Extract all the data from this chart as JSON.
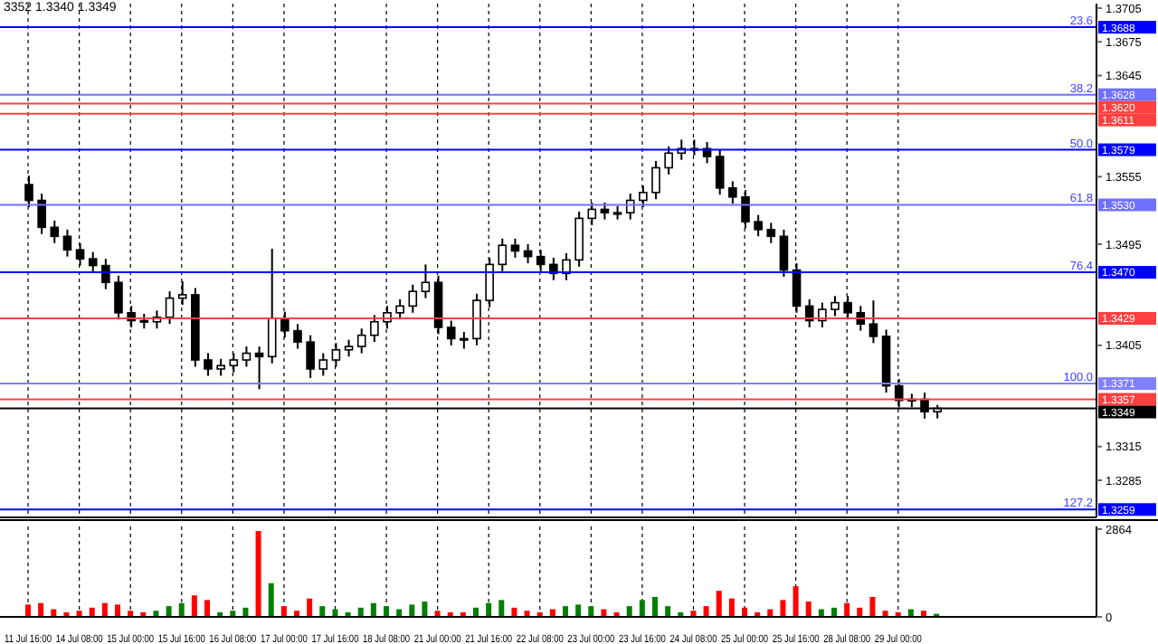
{
  "chart_data": [
    {
      "type": "candlestick",
      "title": "3352 1.3340 1.3349",
      "grid": "x",
      "tick_labels": "y",
      "ylim": [
        1.3252,
        1.3709
      ],
      "yticks": [
        1.3705,
        1.3675,
        1.3645,
        1.3555,
        1.3495,
        1.3405,
        1.3315,
        1.3285
      ],
      "color": "#000000",
      "categories": [
        null,
        null,
        null,
        null,
        null,
        null,
        null,
        null,
        null,
        null,
        null,
        null,
        null,
        null,
        null,
        null,
        null,
        null,
        null,
        null,
        null,
        null,
        null,
        null,
        null,
        null,
        null,
        null,
        null,
        null,
        null,
        null,
        null,
        null,
        null,
        null,
        null,
        null,
        null,
        null,
        null,
        null,
        null,
        null,
        null,
        null,
        null,
        null,
        null,
        null,
        null,
        null,
        null,
        null,
        null,
        null,
        null,
        null,
        null,
        null,
        null,
        null,
        null,
        null,
        null,
        null,
        null,
        null,
        null,
        null,
        null,
        null,
        null,
        null,
        null,
        null,
        null,
        null,
        null,
        null,
        null,
        null,
        null,
        null
      ],
      "ohlc": [
        [
          1.3548,
          1.3556,
          1.3528,
          1.3534
        ],
        [
          1.3534,
          1.354,
          1.3504,
          1.351
        ],
        [
          1.351,
          1.3516,
          1.3496,
          1.3502
        ],
        [
          1.3502,
          1.3508,
          1.3484,
          1.349
        ],
        [
          1.349,
          1.3496,
          1.3476,
          1.3482
        ],
        [
          1.3482,
          1.3488,
          1.347,
          1.3476
        ],
        [
          1.3476,
          1.3482,
          1.3455,
          1.3461
        ],
        [
          1.3461,
          1.3467,
          1.3428,
          1.3434
        ],
        [
          1.3434,
          1.344,
          1.3421,
          1.3427
        ],
        [
          1.3427,
          1.3433,
          1.342,
          1.3426
        ],
        [
          1.3426,
          1.3436,
          1.342,
          1.343
        ],
        [
          1.343,
          1.3453,
          1.3424,
          1.3447
        ],
        [
          1.3447,
          1.3462,
          1.3441,
          1.345
        ],
        [
          1.345,
          1.3456,
          1.3386,
          1.3392
        ],
        [
          1.3392,
          1.3398,
          1.3378,
          1.3384
        ],
        [
          1.3384,
          1.3393,
          1.3378,
          1.3387
        ],
        [
          1.3387,
          1.3398,
          1.3381,
          1.3392
        ],
        [
          1.3392,
          1.3404,
          1.3386,
          1.3398
        ],
        [
          1.3398,
          1.3404,
          1.3366,
          1.3395
        ],
        [
          1.3395,
          1.3491,
          1.3389,
          1.3429
        ],
        [
          1.3429,
          1.3435,
          1.3412,
          1.3418
        ],
        [
          1.3418,
          1.3424,
          1.3402,
          1.3408
        ],
        [
          1.3408,
          1.3414,
          1.3376,
          1.3384
        ],
        [
          1.3384,
          1.3398,
          1.3378,
          1.3392
        ],
        [
          1.3392,
          1.3407,
          1.3386,
          1.3401
        ],
        [
          1.3401,
          1.341,
          1.3395,
          1.3404
        ],
        [
          1.3404,
          1.342,
          1.3398,
          1.3414
        ],
        [
          1.3414,
          1.3432,
          1.3408,
          1.3426
        ],
        [
          1.3426,
          1.344,
          1.342,
          1.3434
        ],
        [
          1.3434,
          1.3446,
          1.3428,
          1.344
        ],
        [
          1.344,
          1.3459,
          1.3434,
          1.3453
        ],
        [
          1.3453,
          1.3477,
          1.3447,
          1.3461
        ],
        [
          1.3461,
          1.3467,
          1.3415,
          1.3421
        ],
        [
          1.3421,
          1.3427,
          1.3405,
          1.3411
        ],
        [
          1.3411,
          1.3417,
          1.3402,
          1.3411
        ],
        [
          1.3411,
          1.3451,
          1.3405,
          1.3445
        ],
        [
          1.3445,
          1.3483,
          1.3439,
          1.3477
        ],
        [
          1.3477,
          1.35,
          1.3471,
          1.3494
        ],
        [
          1.3494,
          1.35,
          1.3483,
          1.3489
        ],
        [
          1.3489,
          1.3495,
          1.3478,
          1.3484
        ],
        [
          1.3484,
          1.349,
          1.3471,
          1.3477
        ],
        [
          1.3477,
          1.3483,
          1.3463,
          1.3469
        ],
        [
          1.3469,
          1.3487,
          1.3463,
          1.3481
        ],
        [
          1.3481,
          1.3524,
          1.3475,
          1.3518
        ],
        [
          1.3518,
          1.3532,
          1.3512,
          1.3526
        ],
        [
          1.3526,
          1.3532,
          1.3517,
          1.3523
        ],
        [
          1.3523,
          1.3529,
          1.3517,
          1.3523
        ],
        [
          1.3523,
          1.354,
          1.3517,
          1.3534
        ],
        [
          1.3534,
          1.3547,
          1.3528,
          1.3541
        ],
        [
          1.3541,
          1.3569,
          1.3535,
          1.3563
        ],
        [
          1.3563,
          1.3582,
          1.3557,
          1.3576
        ],
        [
          1.3576,
          1.3588,
          1.357,
          1.358
        ],
        [
          1.358,
          1.3588,
          1.3574,
          1.358
        ],
        [
          1.358,
          1.3586,
          1.3567,
          1.3573
        ],
        [
          1.3573,
          1.3579,
          1.3539,
          1.3545
        ],
        [
          1.3545,
          1.3551,
          1.3531,
          1.3537
        ],
        [
          1.3537,
          1.3543,
          1.3509,
          1.3515
        ],
        [
          1.3515,
          1.3521,
          1.3502,
          1.3508
        ],
        [
          1.3508,
          1.3514,
          1.3496,
          1.3502
        ],
        [
          1.3502,
          1.3508,
          1.3466,
          1.3472
        ],
        [
          1.3472,
          1.3478,
          1.3434,
          1.344
        ],
        [
          1.344,
          1.3446,
          1.3421,
          1.3427
        ],
        [
          1.3427,
          1.3443,
          1.3421,
          1.3437
        ],
        [
          1.3437,
          1.3449,
          1.3431,
          1.3443
        ],
        [
          1.3443,
          1.3449,
          1.3428,
          1.3434
        ],
        [
          1.3434,
          1.344,
          1.3418,
          1.3424
        ],
        [
          1.3424,
          1.3445,
          1.3407,
          1.3413
        ],
        [
          1.3413,
          1.3419,
          1.3363,
          1.3369
        ],
        [
          1.3369,
          1.3375,
          1.335,
          1.3356
        ],
        [
          1.3356,
          1.3362,
          1.335,
          1.3357
        ],
        [
          1.3357,
          1.3363,
          1.334,
          1.3346
        ],
        [
          1.3346,
          1.3352,
          1.334,
          1.3349
        ],
        null,
        null,
        null,
        null,
        null,
        null,
        null,
        null,
        null,
        null,
        null,
        null
      ],
      "ref_lines": [
        {
          "axis": "y",
          "value": 1.3688,
          "label": "1.3688",
          "color": "#0000ff"
        },
        {
          "axis": "y",
          "value": 1.3628,
          "label": "1.3628",
          "color": "#7070ff"
        },
        {
          "axis": "y",
          "value": 1.362,
          "label": "1.3620",
          "color": "#ff4040"
        },
        {
          "axis": "y",
          "value": 1.3611,
          "label": "1.3611",
          "color": "#ff4040"
        },
        {
          "axis": "y",
          "value": 1.3579,
          "label": "1.3579",
          "color": "#0000ff"
        },
        {
          "axis": "y",
          "value": 1.353,
          "label": "1.3530",
          "color": "#7070ff"
        },
        {
          "axis": "y",
          "value": 1.347,
          "label": "1.3470",
          "color": "#0000ff"
        },
        {
          "axis": "y",
          "value": 1.3429,
          "label": "1.3429",
          "color": "#ff4040"
        },
        {
          "axis": "y",
          "value": 1.3371,
          "label": "1.3371",
          "color": "#8080ff"
        },
        {
          "axis": "y",
          "value": 1.3357,
          "label": "1.3357",
          "color": "#ff4040"
        },
        {
          "axis": "y",
          "value": 1.3349,
          "label": "1.3349",
          "color": "#000000"
        },
        {
          "axis": "y",
          "value": 1.3259,
          "label": "1.3259",
          "color": "#0000ff"
        }
      ],
      "annotations": [
        {
          "text": "23.6",
          "y": 1.3688
        },
        {
          "text": "38.2",
          "y": 1.3628
        },
        {
          "text": "50.0",
          "y": 1.3579
        },
        {
          "text": "61.8",
          "y": 1.353
        },
        {
          "text": "76.4",
          "y": 1.347
        },
        {
          "text": "100.0",
          "y": 1.3371
        },
        {
          "text": "127.2",
          "y": 1.3259
        }
      ]
    },
    {
      "type": "bar",
      "grid": "x",
      "ylim": [
        0,
        2950
      ],
      "yticks": [
        0,
        2864
      ],
      "categories": [
        "11 Jul 16:00",
        null,
        null,
        null,
        "14 Jul 08:00",
        null,
        null,
        null,
        "15 Jul 00:00",
        null,
        null,
        null,
        "15 Jul 16:00",
        null,
        null,
        null,
        "16 Jul 08:00",
        null,
        null,
        null,
        "17 Jul 00:00",
        null,
        null,
        null,
        "17 Jul 16:00",
        null,
        null,
        null,
        "18 Jul 08:00",
        null,
        null,
        null,
        "21 Jul 00:00",
        null,
        null,
        null,
        "21 Jul 16:00",
        null,
        null,
        null,
        "22 Jul 08:00",
        null,
        null,
        null,
        "23 Jul 00:00",
        null,
        null,
        null,
        "23 Jul 16:00",
        null,
        null,
        null,
        "24 Jul 08:00",
        null,
        null,
        null,
        "25 Jul 00:00",
        null,
        null,
        null,
        "25 Jul 16:00",
        null,
        null,
        null,
        "28 Jul 08:00",
        null,
        null,
        null,
        "29 Jul 00:00",
        null,
        null,
        null,
        null,
        null,
        null,
        null,
        null,
        null,
        null,
        null,
        null,
        null,
        null,
        null
      ],
      "values": [
        400,
        450,
        250,
        150,
        200,
        300,
        450,
        400,
        200,
        150,
        200,
        350,
        450,
        700,
        550,
        150,
        200,
        300,
        2800,
        1100,
        350,
        200,
        600,
        350,
        250,
        150,
        300,
        450,
        350,
        250,
        400,
        500,
        200,
        150,
        150,
        300,
        450,
        550,
        300,
        200,
        150,
        250,
        350,
        400,
        350,
        250,
        150,
        350,
        550,
        650,
        350,
        150,
        200,
        350,
        850,
        600,
        300,
        150,
        250,
        550,
        1000,
        500,
        250,
        300,
        450,
        300,
        650,
        200,
        150,
        250,
        200,
        100,
        null,
        null,
        null,
        null,
        null,
        null,
        null,
        null,
        null,
        null,
        null,
        null
      ],
      "colors": [
        "#ff0000",
        "#ff0000",
        "#ff0000",
        "#ff0000",
        "#ff0000",
        "#ff0000",
        "#ff0000",
        "#ff0000",
        "#ff0000",
        "#ff0000",
        "#008000",
        "#008000",
        "#008000",
        "#ff0000",
        "#ff0000",
        "#008000",
        "#008000",
        "#008000",
        "#ff0000",
        "#008000",
        "#ff0000",
        "#ff0000",
        "#ff0000",
        "#008000",
        "#008000",
        "#008000",
        "#008000",
        "#008000",
        "#008000",
        "#008000",
        "#008000",
        "#008000",
        "#ff0000",
        "#ff0000",
        "#ff0000",
        "#008000",
        "#008000",
        "#008000",
        "#ff0000",
        "#ff0000",
        "#ff0000",
        "#ff0000",
        "#008000",
        "#008000",
        "#008000",
        "#ff0000",
        "#ff0000",
        "#008000",
        "#008000",
        "#008000",
        "#008000",
        "#008000",
        "#ff0000",
        "#ff0000",
        "#ff0000",
        "#ff0000",
        "#ff0000",
        "#ff0000",
        "#ff0000",
        "#ff0000",
        "#ff0000",
        "#ff0000",
        "#008000",
        "#008000",
        "#ff0000",
        "#ff0000",
        "#ff0000",
        "#ff0000",
        "#ff0000",
        "#008000",
        "#ff0000",
        "#008000",
        null,
        null,
        null,
        null,
        null,
        null,
        null,
        null,
        null,
        null,
        null,
        null
      ]
    }
  ]
}
